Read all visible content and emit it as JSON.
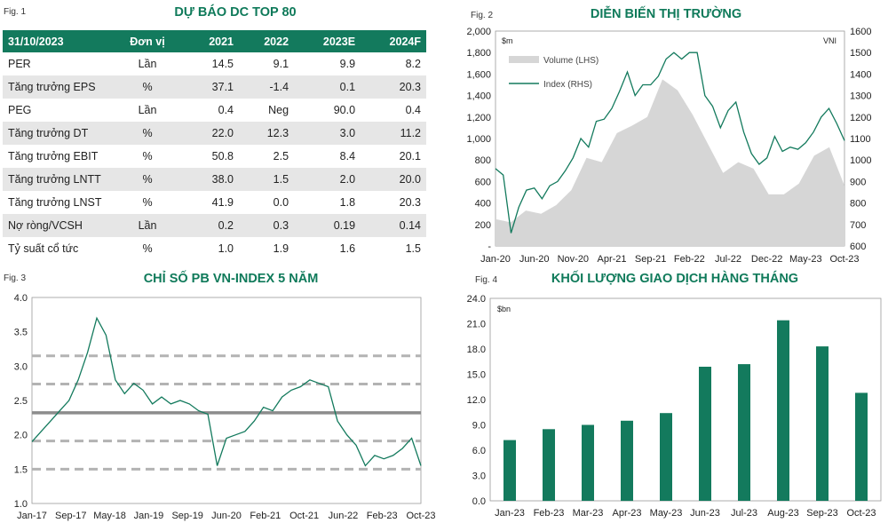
{
  "fig1": {
    "label": "Fig. 1",
    "title": "DỰ BÁO DC TOP 80",
    "headers": [
      "31/10/2023",
      "Đơn vị",
      "2021",
      "2022",
      "2023E",
      "2024F"
    ],
    "rows": [
      [
        "PER",
        "Lần",
        "14.5",
        "9.1",
        "9.9",
        "8.2"
      ],
      [
        "Tăng trưởng EPS",
        "%",
        "37.1",
        "-1.4",
        "0.1",
        "20.3"
      ],
      [
        "PEG",
        "Lần",
        "0.4",
        "Neg",
        "90.0",
        "0.4"
      ],
      [
        "Tăng trưởng DT",
        "%",
        "22.0",
        "12.3",
        "3.0",
        "11.2"
      ],
      [
        "Tăng trưởng EBIT",
        "%",
        "50.8",
        "2.5",
        "8.4",
        "20.1"
      ],
      [
        "Tăng trưởng LNTT",
        "%",
        "38.0",
        "1.5",
        "2.0",
        "20.0"
      ],
      [
        "Tăng trưởng LNST",
        "%",
        "41.9",
        "0.0",
        "1.8",
        "20.3"
      ],
      [
        "Nợ ròng/VCSH",
        "Lần",
        "0.2",
        "0.3",
        "0.19",
        "0.14"
      ],
      [
        "Tỷ suất cổ tức",
        "%",
        "1.0",
        "1.9",
        "1.6",
        "1.5"
      ]
    ]
  },
  "fig2": {
    "label": "Fig. 2",
    "title": "DIỄN BIẾN THỊ TRƯỜNG",
    "left_unit": "$m",
    "right_unit": "VNI",
    "legend_volume": "Volume (LHS)",
    "legend_index": "Index (RHS)",
    "colors": {
      "volume": "#d6d6d6",
      "index": "#137a5d"
    }
  },
  "fig3": {
    "label": "Fig. 3",
    "title": "CHỈ SỐ PB VN-INDEX 5 NĂM",
    "colors": {
      "line": "#137a5d",
      "mean": "#8c8c8c",
      "band": "#b3b3b3"
    }
  },
  "fig4": {
    "label": "Fig. 4",
    "title": "KHỐI LƯỢNG GIAO DỊCH HÀNG THÁNG",
    "unit": "$bn",
    "colors": {
      "bar": "#137a5d"
    }
  },
  "chart_data": [
    {
      "type": "line",
      "id": "market",
      "x_tick_labels": [
        "Jan-20",
        "Jun-20",
        "Nov-20",
        "Apr-21",
        "Sep-21",
        "Feb-22",
        "Jul-22",
        "Dec-22",
        "May-23",
        "Oct-23"
      ],
      "y_left_ticks": [
        "-",
        "200",
        "400",
        "600",
        "800",
        "1,000",
        "1,200",
        "1,400",
        "1,600",
        "1,800",
        "2,000"
      ],
      "y_right_ticks": [
        "600",
        "700",
        "800",
        "900",
        "1000",
        "1100",
        "1200",
        "1300",
        "1400",
        "1500",
        "1600"
      ],
      "ylim_left": [
        0,
        2000
      ],
      "ylim_right": [
        600,
        1600
      ],
      "series": [
        {
          "name": "Volume (LHS)",
          "kind": "area",
          "axis": "left",
          "x": [
            "Jan-20",
            "Mar-20",
            "May-20",
            "Jul-20",
            "Sep-20",
            "Nov-20",
            "Jan-21",
            "Mar-21",
            "May-21",
            "Jul-21",
            "Sep-21",
            "Nov-21",
            "Jan-22",
            "Mar-22",
            "May-22",
            "Jul-22",
            "Sep-22",
            "Nov-22",
            "Jan-23",
            "Mar-23",
            "May-23",
            "Jul-23",
            "Sep-23",
            "Oct-23"
          ],
          "values": [
            250,
            220,
            330,
            300,
            380,
            520,
            820,
            780,
            1050,
            1120,
            1200,
            1550,
            1450,
            1220,
            950,
            680,
            780,
            720,
            480,
            480,
            580,
            840,
            920,
            560
          ]
        },
        {
          "name": "Index (RHS)",
          "kind": "line",
          "axis": "right",
          "x": [
            "Jan-20",
            "Feb-20",
            "Mar-20",
            "Apr-20",
            "May-20",
            "Jun-20",
            "Jul-20",
            "Aug-20",
            "Sep-20",
            "Oct-20",
            "Nov-20",
            "Dec-20",
            "Jan-21",
            "Feb-21",
            "Mar-21",
            "Apr-21",
            "May-21",
            "Jun-21",
            "Jul-21",
            "Aug-21",
            "Sep-21",
            "Oct-21",
            "Nov-21",
            "Dec-21",
            "Jan-22",
            "Feb-22",
            "Mar-22",
            "Apr-22",
            "May-22",
            "Jun-22",
            "Jul-22",
            "Aug-22",
            "Sep-22",
            "Oct-22",
            "Nov-22",
            "Dec-22",
            "Jan-23",
            "Feb-23",
            "Mar-23",
            "Apr-23",
            "May-23",
            "Jun-23",
            "Jul-23",
            "Aug-23",
            "Sep-23",
            "Oct-23"
          ],
          "values": [
            960,
            930,
            660,
            780,
            860,
            870,
            820,
            880,
            900,
            950,
            1010,
            1100,
            1060,
            1180,
            1190,
            1240,
            1320,
            1410,
            1300,
            1350,
            1350,
            1390,
            1470,
            1500,
            1470,
            1500,
            1500,
            1300,
            1250,
            1150,
            1230,
            1270,
            1130,
            1030,
            980,
            1010,
            1110,
            1040,
            1060,
            1050,
            1080,
            1130,
            1200,
            1240,
            1170,
            1090
          ]
        }
      ]
    },
    {
      "type": "line",
      "id": "pb",
      "x_tick_labels": [
        "Jan-17",
        "Sep-17",
        "May-18",
        "Jan-19",
        "Sep-19",
        "Jun-20",
        "Feb-21",
        "Oct-21",
        "Jun-22",
        "Feb-23",
        "Oct-23"
      ],
      "y_ticks": [
        "1.0",
        "1.5",
        "2.0",
        "2.5",
        "3.0",
        "3.5",
        "4.0"
      ],
      "ylim": [
        1.0,
        4.0
      ],
      "reference_lines": {
        "mean": 2.32,
        "plus_1sd": 2.74,
        "plus_2sd": 3.15,
        "minus_1sd": 1.91,
        "minus_2sd": 1.5
      },
      "series": [
        {
          "name": "PB",
          "x": [
            "Jan-17",
            "Mar-17",
            "May-17",
            "Jul-17",
            "Sep-17",
            "Nov-17",
            "Jan-18",
            "Mar-18",
            "Apr-18",
            "May-18",
            "Jul-18",
            "Sep-18",
            "Nov-18",
            "Jan-19",
            "Mar-19",
            "May-19",
            "Jul-19",
            "Sep-19",
            "Nov-19",
            "Jan-20",
            "Mar-20",
            "May-20",
            "Jul-20",
            "Sep-20",
            "Nov-20",
            "Jan-21",
            "Mar-21",
            "May-21",
            "Jul-21",
            "Sep-21",
            "Nov-21",
            "Jan-22",
            "Mar-22",
            "May-22",
            "Jul-22",
            "Sep-22",
            "Nov-22",
            "Jan-23",
            "Mar-23",
            "May-23",
            "Jul-23",
            "Sep-23",
            "Oct-23"
          ],
          "values": [
            1.9,
            2.05,
            2.2,
            2.35,
            2.5,
            2.8,
            3.2,
            3.7,
            3.45,
            2.8,
            2.6,
            2.75,
            2.65,
            2.45,
            2.55,
            2.45,
            2.5,
            2.45,
            2.35,
            2.3,
            1.55,
            1.95,
            2.0,
            2.05,
            2.2,
            2.4,
            2.35,
            2.55,
            2.65,
            2.7,
            2.8,
            2.75,
            2.7,
            2.2,
            2.0,
            1.85,
            1.55,
            1.7,
            1.65,
            1.7,
            1.8,
            1.95,
            1.55
          ]
        }
      ]
    },
    {
      "type": "bar",
      "id": "monthly_volume",
      "categories": [
        "Jan-23",
        "Feb-23",
        "Mar-23",
        "Apr-23",
        "May-23",
        "Jun-23",
        "Jul-23",
        "Aug-23",
        "Sep-23",
        "Oct-23"
      ],
      "values": [
        7.2,
        8.5,
        9.0,
        9.5,
        10.4,
        15.9,
        16.2,
        21.4,
        18.3,
        12.8
      ],
      "y_ticks": [
        "0.0",
        "3.0",
        "6.0",
        "9.0",
        "12.0",
        "15.0",
        "18.0",
        "21.0",
        "24.0"
      ],
      "ylim": [
        0,
        24
      ]
    }
  ]
}
